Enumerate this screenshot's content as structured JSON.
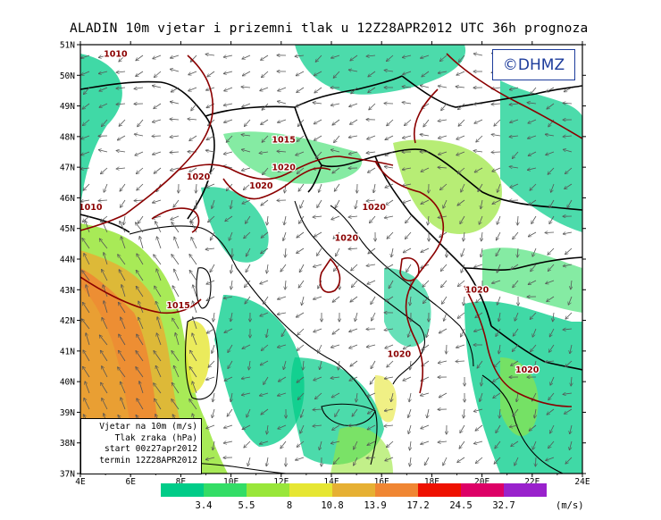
{
  "title": "ALADIN 10m vjetar i prizemni tlak u 12Z28APR2012 UTC 36h prognoza",
  "logo_text": "©DHMZ",
  "legend_box": {
    "line1": "Vjetar na 10m (m/s)",
    "line2": "Tlak zraka (hPa)",
    "line3": "start 00z27apr2012",
    "line4": "termin 12Z28APR2012"
  },
  "axes": {
    "lat_labels": [
      "51N",
      "50N",
      "49N",
      "48N",
      "47N",
      "46N",
      "45N",
      "44N",
      "43N",
      "42N",
      "41N",
      "40N",
      "39N",
      "38N",
      "37N"
    ],
    "lon_labels": [
      "4E",
      "6E",
      "8E",
      "10E",
      "12E",
      "14E",
      "16E",
      "18E",
      "20E",
      "22E",
      "24E"
    ],
    "lat_range": [
      37,
      51
    ],
    "lon_range": [
      4,
      24
    ]
  },
  "isobar_labels": [
    {
      "text": "1010",
      "lon": 5.4,
      "lat": 50.6
    },
    {
      "text": "1015",
      "lon": 12.1,
      "lat": 47.8
    },
    {
      "text": "1020",
      "lon": 12.1,
      "lat": 46.9
    },
    {
      "text": "1020",
      "lon": 8.7,
      "lat": 46.6
    },
    {
      "text": "1020",
      "lon": 11.2,
      "lat": 46.3
    },
    {
      "text": "1010",
      "lon": 4.4,
      "lat": 45.6
    },
    {
      "text": "1020",
      "lon": 15.7,
      "lat": 45.6
    },
    {
      "text": "1020",
      "lon": 14.6,
      "lat": 44.6
    },
    {
      "text": "1015",
      "lon": 7.9,
      "lat": 42.4
    },
    {
      "text": "1020",
      "lon": 19.8,
      "lat": 42.9
    },
    {
      "text": "1020",
      "lon": 16.7,
      "lat": 40.8
    },
    {
      "text": "1020",
      "lon": 21.8,
      "lat": 40.3
    }
  ],
  "colorbar": {
    "labels": [
      "3.4",
      "5.5",
      "8",
      "10.8",
      "13.9",
      "17.2",
      "24.5",
      "32.7"
    ],
    "unit": "(m/s)",
    "colors": [
      "#00cc88",
      "#33dd66",
      "#99e63a",
      "#e6e633",
      "#e6b033",
      "#f08633",
      "#ee1100",
      "#dd0066",
      "#9922cc"
    ]
  }
}
